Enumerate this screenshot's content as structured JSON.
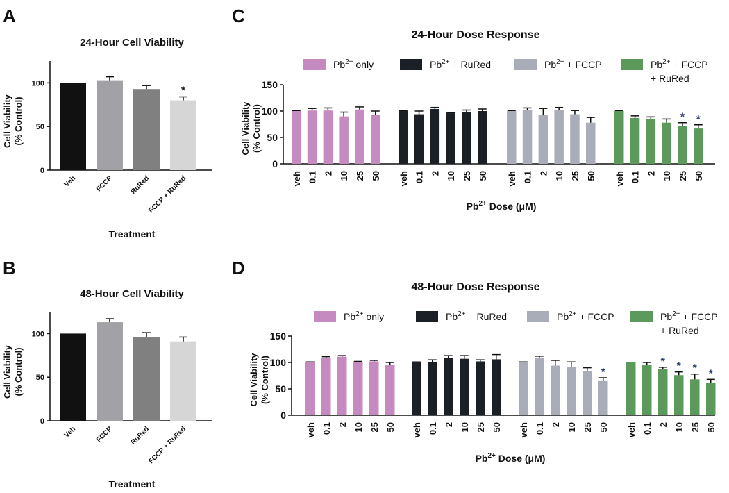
{
  "colors": {
    "black": "#111111",
    "gray_mid": "#a2a2a6",
    "gray_dark": "#808080",
    "gray_light": "#d6d6d6",
    "pink": "#c58ac0",
    "navy": "#1b1f26",
    "slate": "#a9adb8",
    "green": "#5c9a5c",
    "star_blue": "#2b3d7a"
  },
  "chart_data": [
    {
      "panel_label": "A",
      "type": "bar",
      "title": "24-Hour Cell Viability",
      "ylabel_line1": "Cell Viability",
      "ylabel_line2": "(% Control)",
      "xlabel": "Treatment",
      "ylim": [
        0,
        125
      ],
      "yticks": [
        "0",
        "50",
        "100"
      ],
      "categories": [
        "Veh",
        "FCCP",
        "RuRed",
        "FCCP + RuRed"
      ],
      "values": [
        100,
        103,
        93,
        80
      ],
      "errors": [
        0,
        4,
        4,
        4
      ],
      "bar_colors": [
        "#111111",
        "#a2a2a6",
        "#808080",
        "#d6d6d6"
      ],
      "significance": [
        "",
        "",
        "",
        "*"
      ]
    },
    {
      "panel_label": "B",
      "type": "bar",
      "title": "48-Hour Cell Viability",
      "ylabel_line1": "Cell Viability",
      "ylabel_line2": "(% Control)",
      "xlabel": "Treatment",
      "ylim": [
        0,
        125
      ],
      "yticks": [
        "0",
        "50",
        "100"
      ],
      "categories": [
        "Veh",
        "FCCP",
        "RuRed",
        "FCCP + RuRed"
      ],
      "values": [
        100,
        113,
        96,
        91
      ],
      "errors": [
        0,
        4,
        5,
        5
      ],
      "bar_colors": [
        "#111111",
        "#a2a2a6",
        "#808080",
        "#d6d6d6"
      ],
      "significance": [
        "",
        "",
        "",
        ""
      ]
    },
    {
      "panel_label": "C",
      "type": "bar",
      "title": "24-Hour Dose Response",
      "ylabel_line1": "Cell Viability",
      "ylabel_line2": "(% Control)",
      "xlabel_prefix": "Pb",
      "xlabel_sup": "2+",
      "xlabel_suffix": " Dose (μM)",
      "ylim": [
        0,
        150
      ],
      "yticks": [
        "0",
        "50",
        "100",
        "150"
      ],
      "categories": [
        "veh",
        "0.1",
        "2",
        "10",
        "25",
        "50"
      ],
      "series": [
        {
          "name_base": "Pb",
          "name_sup": "2+",
          "name_rest": " only",
          "name_line2": "",
          "color": "#c58ac0",
          "values": [
            100,
            101,
            101,
            90,
            103,
            93
          ],
          "errors": [
            1,
            4,
            5,
            8,
            5,
            7
          ],
          "significance": [
            "",
            "",
            "",
            "",
            "",
            ""
          ]
        },
        {
          "name_base": "Pb",
          "name_sup": "2+",
          "name_rest": " + RuRed",
          "name_line2": "",
          "color": "#1b1f26",
          "values": [
            100,
            94,
            104,
            96,
            98,
            100
          ],
          "errors": [
            1,
            6,
            3,
            1,
            4,
            4
          ],
          "significance": [
            "",
            "",
            "",
            "",
            "",
            ""
          ]
        },
        {
          "name_base": "Pb",
          "name_sup": "2+",
          "name_rest": " + FCCP",
          "name_line2": "",
          "color": "#a9adb8",
          "values": [
            100,
            102,
            92,
            102,
            94,
            78
          ],
          "errors": [
            1,
            4,
            13,
            5,
            7,
            10
          ],
          "significance": [
            "",
            "",
            "",
            "",
            "",
            ""
          ]
        },
        {
          "name_base": "Pb",
          "name_sup": "2+",
          "name_rest": " + FCCP",
          "name_line2": "+ RuRed",
          "color": "#5c9a5c",
          "values": [
            100,
            87,
            85,
            78,
            72,
            67
          ],
          "errors": [
            1,
            4,
            4,
            7,
            6,
            7
          ],
          "significance": [
            "",
            "",
            "",
            "",
            "*",
            "*"
          ]
        }
      ]
    },
    {
      "panel_label": "D",
      "type": "bar",
      "title": "48-Hour Dose Response",
      "ylabel_line1": "Cell Viability",
      "ylabel_line2": "(% Control)",
      "xlabel_prefix": "Pb",
      "xlabel_sup": "2+",
      "xlabel_suffix": " Dose (μM)",
      "ylim": [
        0,
        150
      ],
      "yticks": [
        "0",
        "50",
        "100",
        "150"
      ],
      "categories": [
        "veh",
        "0.1",
        "2",
        "10",
        "25",
        "50"
      ],
      "series": [
        {
          "name_base": "Pb",
          "name_sup": "2+",
          "name_rest": " only",
          "name_line2": "",
          "color": "#c58ac0",
          "values": [
            100,
            108,
            111,
            100,
            102,
            95
          ],
          "errors": [
            1,
            3,
            2,
            2,
            2,
            5
          ],
          "significance": [
            "",
            "",
            "",
            "",
            "",
            ""
          ]
        },
        {
          "name_base": "Pb",
          "name_sup": "2+",
          "name_rest": " + RuRed",
          "name_line2": "",
          "color": "#1b1f26",
          "values": [
            100,
            100,
            109,
            107,
            102,
            106
          ],
          "errors": [
            1,
            5,
            4,
            6,
            3,
            9
          ],
          "significance": [
            "",
            "",
            "",
            "",
            "",
            ""
          ]
        },
        {
          "name_base": "Pb",
          "name_sup": "2+",
          "name_rest": " + FCCP",
          "name_line2": "",
          "color": "#a9adb8",
          "values": [
            100,
            109,
            94,
            92,
            83,
            66
          ],
          "errors": [
            1,
            3,
            10,
            9,
            7,
            5
          ],
          "significance": [
            "",
            "",
            "",
            "",
            "",
            "*"
          ]
        },
        {
          "name_base": "Pb",
          "name_sup": "2+",
          "name_rest": " + FCCP",
          "name_line2": "+ RuRed",
          "color": "#5c9a5c",
          "values": [
            100,
            95,
            88,
            76,
            68,
            61
          ],
          "errors": [
            0,
            5,
            3,
            6,
            10,
            7
          ],
          "significance": [
            "",
            "",
            "*",
            "*",
            "*",
            "*"
          ]
        }
      ]
    }
  ]
}
